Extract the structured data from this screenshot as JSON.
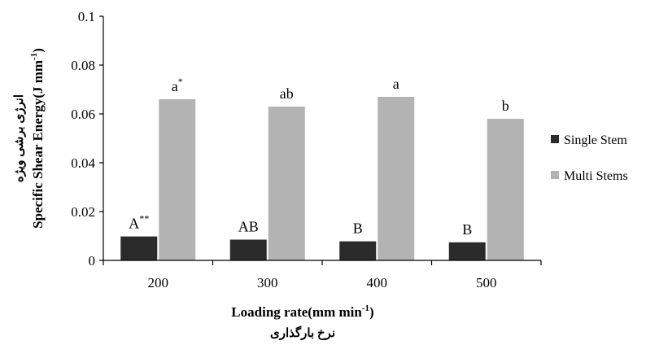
{
  "chart_data": {
    "type": "bar",
    "categories": [
      "200",
      "300",
      "400",
      "500"
    ],
    "series": [
      {
        "name": "Single Stem",
        "values": [
          0.0098,
          0.0085,
          0.0078,
          0.0074
        ],
        "labels": [
          "A",
          "AB",
          "B",
          "B"
        ],
        "label_sups": [
          "**",
          "",
          "",
          ""
        ],
        "color": "#2b2b2b"
      },
      {
        "name": "Multi Stems",
        "values": [
          0.066,
          0.063,
          0.067,
          0.058
        ],
        "labels": [
          "a",
          "ab",
          "a",
          "b"
        ],
        "label_sups": [
          "*",
          "",
          "",
          ""
        ],
        "color": "#b3b3b3"
      }
    ],
    "xlabel": {
      "main": "Loading rate(mm min",
      "sup": "-1",
      "end": ")"
    },
    "xlabel_fa": "نرخ بارگذاری",
    "ylabel": {
      "main": "Specific Shear Energy(J mm",
      "sup": "-1",
      "end": ")"
    },
    "ylabel_fa": "انرژی برشی ویژه",
    "ylim": [
      0,
      0.1
    ],
    "yticks": [
      "0",
      "0.02",
      "0.04",
      "0.06",
      "0.08",
      "0.1"
    ],
    "grid": false,
    "legend_position": "right"
  }
}
